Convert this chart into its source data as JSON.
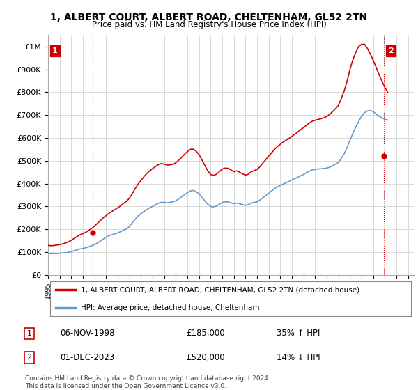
{
  "title": "1, ALBERT COURT, ALBERT ROAD, CHELTENHAM, GL52 2TN",
  "subtitle": "Price paid vs. HM Land Registry's House Price Index (HPI)",
  "ylabel_ticks": [
    0,
    100000,
    200000,
    300000,
    400000,
    500000,
    600000,
    700000,
    800000,
    900000,
    1000000
  ],
  "ylabel_labels": [
    "£0",
    "£100K",
    "£200K",
    "£300K",
    "£400K",
    "£500K",
    "£600K",
    "£700K",
    "£800K",
    "£900K",
    "£1M"
  ],
  "ylim": [
    0,
    1050000
  ],
  "xlim_start": 1995.0,
  "xlim_end": 2026.5,
  "line_color_red": "#cc0000",
  "line_color_blue": "#6699cc",
  "grid_color": "#cccccc",
  "background_color": "#ffffff",
  "legend_label_red": "1, ALBERT COURT, ALBERT ROAD, CHELTENHAM, GL52 2TN (detached house)",
  "legend_label_blue": "HPI: Average price, detached house, Cheltenham",
  "transaction1_date": "06-NOV-1998",
  "transaction1_price": "£185,000",
  "transaction1_hpi": "35% ↑ HPI",
  "transaction2_date": "01-DEC-2023",
  "transaction2_price": "£520,000",
  "transaction2_hpi": "14% ↓ HPI",
  "footer": "Contains HM Land Registry data © Crown copyright and database right 2024.\nThis data is licensed under the Open Government Licence v3.0.",
  "years": [
    1995.0,
    1995.25,
    1995.5,
    1995.75,
    1996.0,
    1996.25,
    1996.5,
    1996.75,
    1997.0,
    1997.25,
    1997.5,
    1997.75,
    1998.0,
    1998.25,
    1998.5,
    1998.75,
    1999.0,
    1999.25,
    1999.5,
    1999.75,
    2000.0,
    2000.25,
    2000.5,
    2000.75,
    2001.0,
    2001.25,
    2001.5,
    2001.75,
    2002.0,
    2002.25,
    2002.5,
    2002.75,
    2003.0,
    2003.25,
    2003.5,
    2003.75,
    2004.0,
    2004.25,
    2004.5,
    2004.75,
    2005.0,
    2005.25,
    2005.5,
    2005.75,
    2006.0,
    2006.25,
    2006.5,
    2006.75,
    2007.0,
    2007.25,
    2007.5,
    2007.75,
    2008.0,
    2008.25,
    2008.5,
    2008.75,
    2009.0,
    2009.25,
    2009.5,
    2009.75,
    2010.0,
    2010.25,
    2010.5,
    2010.75,
    2011.0,
    2011.25,
    2011.5,
    2011.75,
    2012.0,
    2012.25,
    2012.5,
    2012.75,
    2013.0,
    2013.25,
    2013.5,
    2013.75,
    2014.0,
    2014.25,
    2014.5,
    2014.75,
    2015.0,
    2015.25,
    2015.5,
    2015.75,
    2016.0,
    2016.25,
    2016.5,
    2016.75,
    2017.0,
    2017.25,
    2017.5,
    2017.75,
    2018.0,
    2018.25,
    2018.5,
    2018.75,
    2019.0,
    2019.25,
    2019.5,
    2019.75,
    2020.0,
    2020.25,
    2020.5,
    2020.75,
    2021.0,
    2021.25,
    2021.5,
    2021.75,
    2022.0,
    2022.25,
    2022.5,
    2022.75,
    2023.0,
    2023.25,
    2023.5,
    2023.75,
    2024.0,
    2024.25
  ],
  "hpi_values": [
    95000,
    93000,
    93500,
    94000,
    95000,
    96000,
    97000,
    99000,
    102000,
    106000,
    110000,
    114000,
    116000,
    119000,
    123000,
    128000,
    133000,
    140000,
    148000,
    157000,
    165000,
    172000,
    176000,
    180000,
    184000,
    190000,
    196000,
    202000,
    212000,
    228000,
    244000,
    258000,
    268000,
    278000,
    286000,
    294000,
    300000,
    308000,
    314000,
    318000,
    318000,
    316000,
    318000,
    320000,
    325000,
    333000,
    342000,
    352000,
    360000,
    368000,
    370000,
    365000,
    355000,
    340000,
    325000,
    310000,
    300000,
    298000,
    302000,
    310000,
    318000,
    320000,
    320000,
    316000,
    312000,
    315000,
    312000,
    308000,
    305000,
    308000,
    315000,
    318000,
    320000,
    328000,
    338000,
    348000,
    358000,
    368000,
    378000,
    386000,
    392000,
    398000,
    404000,
    410000,
    416000,
    422000,
    428000,
    434000,
    440000,
    448000,
    455000,
    460000,
    462000,
    464000,
    465000,
    466000,
    468000,
    472000,
    478000,
    485000,
    492000,
    510000,
    530000,
    558000,
    590000,
    620000,
    648000,
    672000,
    695000,
    710000,
    718000,
    720000,
    715000,
    705000,
    695000,
    688000,
    682000,
    678000
  ],
  "property_values": [
    130000,
    128000,
    129000,
    131000,
    133000,
    136000,
    140000,
    145000,
    152000,
    160000,
    168000,
    176000,
    181000,
    187000,
    195000,
    204000,
    214000,
    226000,
    238000,
    250000,
    260000,
    270000,
    278000,
    286000,
    294000,
    303000,
    313000,
    322000,
    336000,
    356000,
    378000,
    398000,
    414000,
    430000,
    444000,
    456000,
    465000,
    475000,
    483000,
    488000,
    485000,
    481000,
    482000,
    484000,
    491000,
    502000,
    515000,
    528000,
    540000,
    550000,
    551000,
    542000,
    527000,
    504000,
    480000,
    456000,
    440000,
    436000,
    441000,
    452000,
    464000,
    468000,
    467000,
    460000,
    452000,
    456000,
    450000,
    443000,
    437000,
    441000,
    452000,
    457000,
    462000,
    474000,
    490000,
    505000,
    520000,
    535000,
    550000,
    562000,
    572000,
    582000,
    590000,
    598000,
    607000,
    616000,
    626000,
    636000,
    645000,
    655000,
    665000,
    673000,
    677000,
    681000,
    684000,
    688000,
    694000,
    703000,
    715000,
    728000,
    742000,
    772000,
    805000,
    848000,
    900000,
    942000,
    975000,
    1000000,
    1010000,
    1010000,
    992000,
    968000,
    940000,
    910000,
    878000,
    848000,
    822000,
    800000
  ],
  "marker1_x": 1998.83,
  "marker1_y": 185000,
  "marker2_x": 2023.917,
  "marker2_y": 520000
}
